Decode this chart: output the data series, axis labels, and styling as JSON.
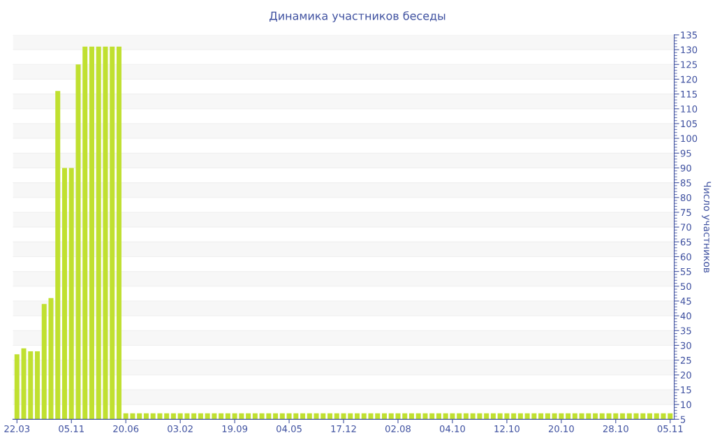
{
  "chart_data": {
    "type": "bar",
    "title": "Динамика участников беседы",
    "ylabel": "Число участников",
    "categories": [
      "22.03",
      null,
      null,
      null,
      null,
      null,
      null,
      null,
      "05.11",
      null,
      null,
      null,
      null,
      null,
      null,
      null,
      "20.06",
      null,
      null,
      null,
      null,
      null,
      null,
      null,
      "03.02",
      null,
      null,
      null,
      null,
      null,
      null,
      null,
      "19.09",
      null,
      null,
      null,
      null,
      null,
      null,
      null,
      "04.05",
      null,
      null,
      null,
      null,
      null,
      null,
      null,
      "17.12",
      null,
      null,
      null,
      null,
      null,
      null,
      null,
      "02.08",
      null,
      null,
      null,
      null,
      null,
      null,
      null,
      "04.10",
      null,
      null,
      null,
      null,
      null,
      null,
      null,
      "12.10",
      null,
      null,
      null,
      null,
      null,
      null,
      null,
      "20.10",
      null,
      null,
      null,
      null,
      null,
      null,
      null,
      "28.10",
      null,
      null,
      null,
      null,
      null,
      null,
      null,
      "05.11"
    ],
    "values": [
      27,
      29,
      28,
      28,
      44,
      46,
      116,
      90,
      90,
      125,
      131,
      131,
      131,
      131,
      131,
      131,
      7,
      7,
      7,
      7,
      7,
      7,
      7,
      7,
      7,
      7,
      7,
      7,
      7,
      7,
      7,
      7,
      7,
      7,
      7,
      7,
      7,
      7,
      7,
      7,
      7,
      7,
      7,
      7,
      7,
      7,
      7,
      7,
      7,
      7,
      7,
      7,
      7,
      7,
      7,
      7,
      7,
      7,
      7,
      7,
      7,
      7,
      7,
      7,
      7,
      7,
      7,
      7,
      7,
      7,
      7,
      7,
      7,
      7,
      7,
      7,
      7,
      7,
      7,
      7,
      7,
      7,
      7,
      7,
      7,
      7,
      7,
      7,
      7,
      7,
      7,
      7,
      7,
      7,
      7,
      7,
      7
    ],
    "color": "#c0e030",
    "ylim": [
      5,
      135
    ],
    "yticks": [
      5,
      10,
      15,
      20,
      25,
      30,
      35,
      40,
      45,
      50,
      55,
      60,
      65,
      70,
      75,
      80,
      85,
      90,
      95,
      100,
      105,
      110,
      115,
      120,
      125,
      130,
      135
    ],
    "grid": "y"
  }
}
